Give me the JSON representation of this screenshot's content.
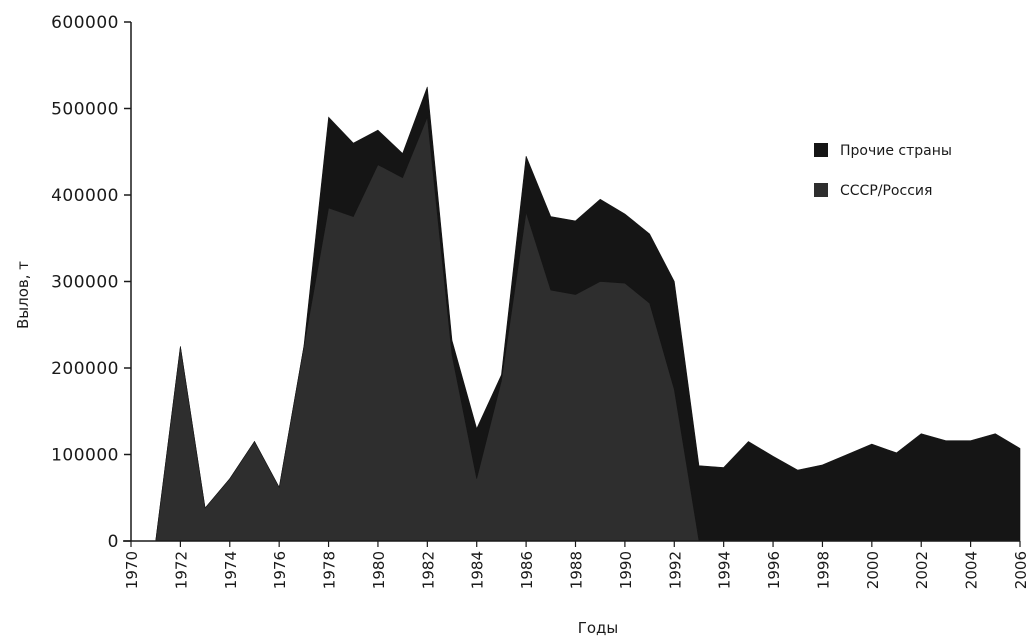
{
  "chart_data": {
    "type": "area",
    "stacked": true,
    "xlabel": "Годы",
    "ylabel": "Вылов, т",
    "xlim": [
      1970,
      2006
    ],
    "ylim": [
      0,
      600000
    ],
    "x_ticks": [
      "1970",
      "1972",
      "1974",
      "1976",
      "1978",
      "1980",
      "1982",
      "1984",
      "1986",
      "1988",
      "1990",
      "1992",
      "1994",
      "1996",
      "1998",
      "2000",
      "2002",
      "2004",
      "2006"
    ],
    "y_ticks": [
      "0",
      "100000",
      "200000",
      "300000",
      "400000",
      "500000",
      "600000"
    ],
    "x": [
      1971,
      1972,
      1973,
      1974,
      1975,
      1976,
      1977,
      1978,
      1979,
      1980,
      1981,
      1982,
      1983,
      1984,
      1985,
      1986,
      1987,
      1988,
      1989,
      1990,
      1991,
      1992,
      1993,
      1994,
      1995,
      1996,
      1997,
      1998,
      1999,
      2000,
      2001,
      2002,
      2003,
      2004,
      2005,
      2006
    ],
    "series": [
      {
        "name": "СССР/Россия",
        "color": "#2e2e2e",
        "values": [
          0,
          225000,
          38000,
          72000,
          115000,
          62000,
          225000,
          385000,
          375000,
          435000,
          420000,
          490000,
          215000,
          72000,
          185000,
          380000,
          290000,
          285000,
          300000,
          298000,
          275000,
          175000,
          0,
          0,
          0,
          0,
          0,
          0,
          0,
          0,
          0,
          0,
          0,
          0,
          0,
          0
        ]
      },
      {
        "name": "Прочие страны",
        "color": "#151515",
        "values": [
          0,
          0,
          0,
          0,
          0,
          0,
          0,
          105000,
          85000,
          40000,
          28000,
          35000,
          17000,
          58000,
          7000,
          65000,
          85000,
          85000,
          95000,
          80000,
          80000,
          125000,
          87000,
          85000,
          115000,
          98000,
          82000,
          88000,
          100000,
          112000,
          102000,
          124000,
          116000,
          116000,
          124000,
          107000
        ]
      }
    ],
    "legend": {
      "position": "right",
      "items": [
        "Прочие страны",
        "СССР/Россия"
      ]
    }
  }
}
